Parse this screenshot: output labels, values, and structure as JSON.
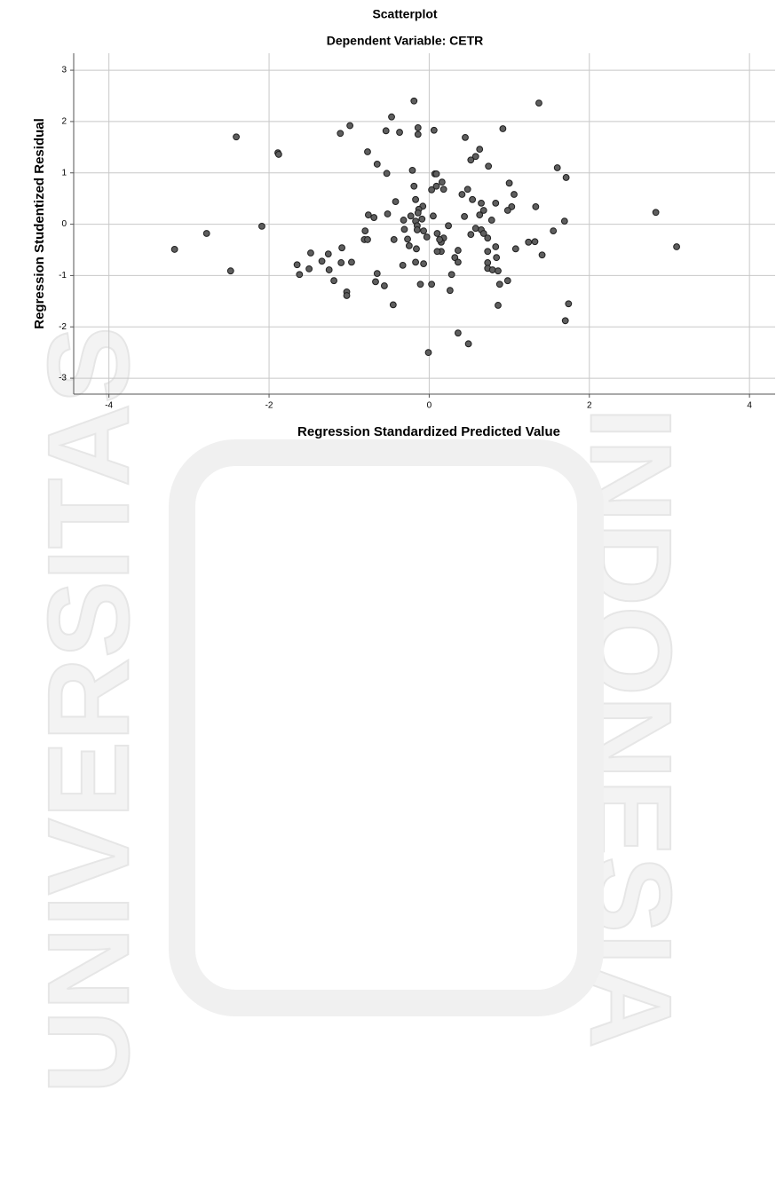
{
  "chart_data": {
    "type": "scatter",
    "title": "Scatterplot",
    "subtitle": "Dependent Variable: CETR",
    "x_label": "Regression Standardized Predicted Value",
    "y_label": "Regression Studentized Residual",
    "xlim": [
      -4.44,
      4.32
    ],
    "ylim": [
      -3.31,
      3.33
    ],
    "xticks": [
      -4,
      -2,
      0,
      2,
      4
    ],
    "yticks": [
      -3,
      -2,
      -1,
      0,
      1,
      2,
      3
    ],
    "grid": true,
    "color": "#5e5e5e",
    "x": [
      -0.19,
      1.37,
      -0.47,
      -2.41,
      -0.99,
      -1.11,
      -0.14,
      -0.37,
      -0.54,
      -0.14,
      0.06,
      0.45,
      0.92,
      -1.89,
      -1.88,
      -0.77,
      -0.65,
      0.63,
      0.58,
      0.52,
      0.74,
      1.6,
      -0.53,
      -0.21,
      0.07,
      1.71,
      0.09,
      0.16,
      1.0,
      -0.19,
      0.09,
      0.03,
      0.18,
      0.48,
      0.41,
      1.06,
      -0.42,
      -0.17,
      0.54,
      0.65,
      0.83,
      -0.08,
      -0.13,
      1.33,
      1.03,
      0.98,
      0.68,
      2.83,
      -0.76,
      -0.69,
      -0.52,
      -0.23,
      -0.14,
      0.05,
      0.63,
      0.44,
      -0.32,
      -0.17,
      -0.09,
      0.78,
      1.69,
      -0.15,
      -2.09,
      0.24,
      -0.31,
      -0.15,
      0.58,
      0.65,
      1.55,
      -0.8,
      -0.07,
      -2.78,
      0.1,
      0.68,
      -0.03,
      0.73,
      0.18,
      0.52,
      -0.81,
      -0.77,
      -0.27,
      -0.44,
      0.15,
      0.13,
      1.32,
      1.24,
      -0.25,
      -1.09,
      1.08,
      3.09,
      -3.18,
      0.83,
      -0.16,
      0.73,
      0.15,
      0.1,
      0.36,
      -1.48,
      -1.26,
      1.41,
      0.32,
      0.84,
      -1.34,
      -0.97,
      0.36,
      -1.1,
      0.73,
      -0.17,
      -0.07,
      -1.65,
      -0.33,
      0.73,
      0.79,
      -1.5,
      -1.25,
      -2.48,
      0.86,
      -1.62,
      -0.65,
      0.28,
      -1.19,
      -0.67,
      0.98,
      -0.11,
      0.03,
      0.88,
      -0.56,
      0.26,
      -1.03,
      -1.03,
      1.74,
      -0.45,
      0.86,
      1.7,
      0.36,
      0.49,
      -0.01
    ],
    "values": [
      2.4,
      2.36,
      2.09,
      1.7,
      1.92,
      1.77,
      1.88,
      1.79,
      1.82,
      1.75,
      1.83,
      1.69,
      1.86,
      1.39,
      1.36,
      1.41,
      1.17,
      1.46,
      1.32,
      1.25,
      1.13,
      1.1,
      0.99,
      1.05,
      0.98,
      0.91,
      0.98,
      0.82,
      0.8,
      0.74,
      0.74,
      0.67,
      0.68,
      0.68,
      0.58,
      0.58,
      0.44,
      0.48,
      0.48,
      0.41,
      0.41,
      0.35,
      0.29,
      0.34,
      0.34,
      0.27,
      0.27,
      0.23,
      0.18,
      0.13,
      0.2,
      0.16,
      0.22,
      0.16,
      0.18,
      0.15,
      0.08,
      0.06,
      0.1,
      0.08,
      0.06,
      -0.03,
      -0.04,
      -0.03,
      -0.1,
      -0.11,
      -0.08,
      -0.11,
      -0.13,
      -0.13,
      -0.13,
      -0.18,
      -0.18,
      -0.18,
      -0.25,
      -0.27,
      -0.27,
      -0.2,
      -0.3,
      -0.3,
      -0.29,
      -0.3,
      -0.35,
      -0.3,
      -0.34,
      -0.35,
      -0.42,
      -0.46,
      -0.48,
      -0.44,
      -0.49,
      -0.44,
      -0.48,
      -0.53,
      -0.53,
      -0.53,
      -0.51,
      -0.56,
      -0.58,
      -0.6,
      -0.65,
      -0.65,
      -0.72,
      -0.74,
      -0.74,
      -0.75,
      -0.75,
      -0.74,
      -0.77,
      -0.79,
      -0.8,
      -0.86,
      -0.89,
      -0.87,
      -0.89,
      -0.91,
      -0.91,
      -0.98,
      -0.96,
      -0.98,
      -1.1,
      -1.12,
      -1.1,
      -1.17,
      -1.17,
      -1.17,
      -1.2,
      -1.29,
      -1.32,
      -1.39,
      -1.55,
      -1.57,
      -1.58,
      -1.88,
      -2.12,
      -2.33,
      -2.5
    ]
  },
  "watermark": {
    "left": "UNIVERSITAS",
    "right": "INDONESIA"
  }
}
